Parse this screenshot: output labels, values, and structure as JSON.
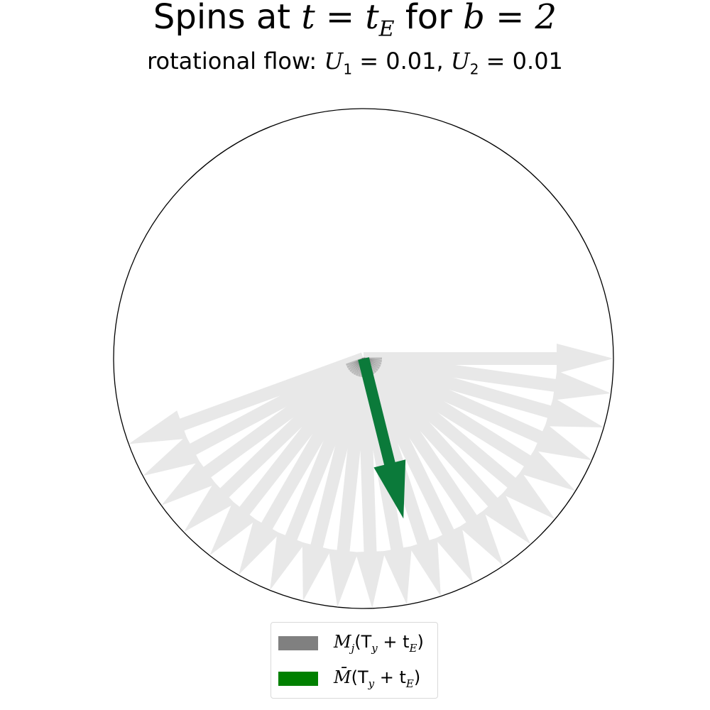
{
  "title": {
    "prefix": "Spins at ",
    "math": "t = t",
    "math_sub": "E",
    "mid": " for ",
    "math2": "b = 2"
  },
  "subtitle": {
    "prefix": "rotational flow: ",
    "u1": "U",
    "u1_sub": "1",
    "u1_val": " = 0.01, ",
    "u2": "U",
    "u2_sub": "2",
    "u2_val": " = 0.01"
  },
  "colors": {
    "spin_arrow": "#e8e8e8",
    "spin_dark": "#666666",
    "mean_arrow": "#0b7a3a",
    "legend_spin": "#808080",
    "legend_mean": "#008000",
    "circle": "#000000"
  },
  "spins_deg": [
    0,
    8,
    16,
    24,
    32,
    40,
    48,
    56,
    64,
    72,
    80,
    88,
    96,
    104,
    112,
    120,
    128,
    136,
    144,
    152,
    160
  ],
  "mean_vector": {
    "angle_deg": 76,
    "magnitude": 0.66
  },
  "legend": {
    "items": [
      {
        "label_main": "M",
        "label_sub1": "j",
        "label_rest": "(T",
        "label_sub2": "y",
        "label_tail": " + t",
        "label_sub3": "E",
        "label_end": ")"
      },
      {
        "label_main": "M̄",
        "label_sub1": "",
        "label_rest": "(T",
        "label_sub2": "y",
        "label_tail": " + t",
        "label_sub3": "E",
        "label_end": ")"
      }
    ]
  }
}
